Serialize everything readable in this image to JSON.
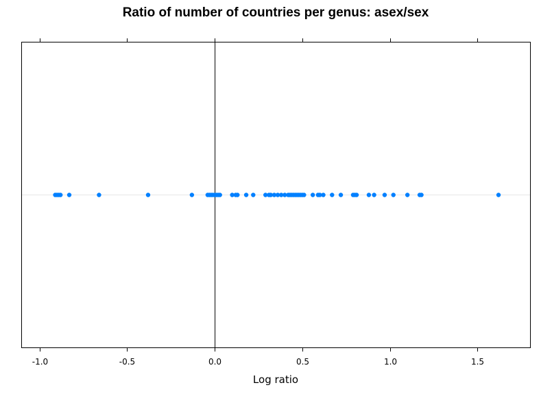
{
  "chart_data": {
    "type": "scatter",
    "title": "Ratio of number of countries per genus: asex/sex",
    "xlabel": "Log ratio",
    "ylabel": "",
    "xlim": [
      -1.1,
      1.8
    ],
    "xticks": [
      -1.0,
      -0.5,
      0.0,
      0.5,
      1.0,
      1.5
    ],
    "xtick_labels": [
      "-1.0",
      "-0.5",
      "0.0",
      "0.5",
      "1.0",
      "1.5"
    ],
    "reference_line_x": 0,
    "grid": false,
    "point_color": "#0080ff",
    "x": [
      -0.91,
      -0.9,
      -0.89,
      -0.88,
      -0.83,
      -0.66,
      -0.38,
      -0.13,
      -0.04,
      -0.03,
      -0.02,
      -0.01,
      0.0,
      0.01,
      0.02,
      0.03,
      0.1,
      0.12,
      0.13,
      0.18,
      0.22,
      0.29,
      0.31,
      0.32,
      0.34,
      0.36,
      0.38,
      0.4,
      0.42,
      0.43,
      0.44,
      0.45,
      0.46,
      0.47,
      0.48,
      0.49,
      0.5,
      0.51,
      0.56,
      0.59,
      0.6,
      0.62,
      0.67,
      0.72,
      0.79,
      0.8,
      0.81,
      0.88,
      0.91,
      0.97,
      1.02,
      1.1,
      1.17,
      1.18,
      1.62
    ]
  }
}
